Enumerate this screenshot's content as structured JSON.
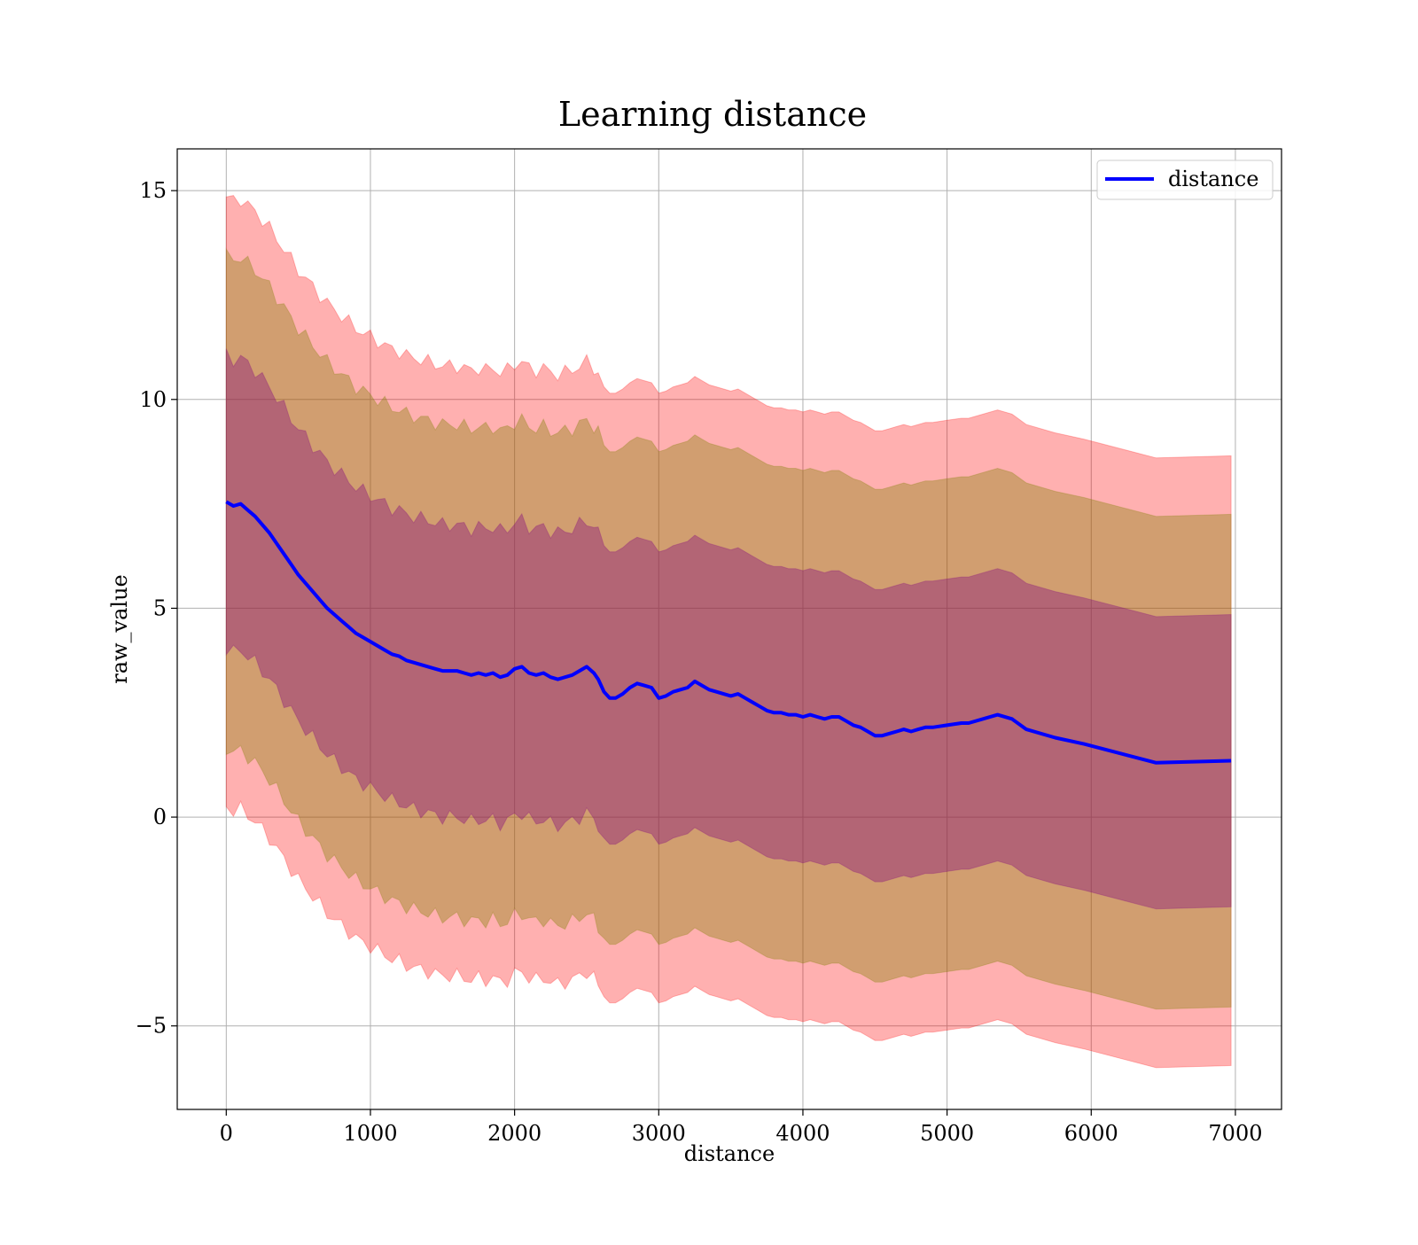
{
  "chart_data": {
    "type": "line",
    "title": "Learning distance",
    "xlabel": "distance",
    "ylabel": "raw_value",
    "xlim": [
      -340,
      7320
    ],
    "ylim": [
      -7.0,
      16.0
    ],
    "xticks": [
      0,
      1000,
      2000,
      3000,
      4000,
      5000,
      6000,
      7000
    ],
    "xtick_labels": [
      "0",
      "1000",
      "2000",
      "3000",
      "4000",
      "5000",
      "6000",
      "7000"
    ],
    "yticks": [
      -5,
      0,
      5,
      10,
      15
    ],
    "ytick_labels": [
      "−5",
      "0",
      "5",
      "10",
      "15"
    ],
    "grid": true,
    "legend_position": "top-right",
    "series": [
      {
        "name": "distance",
        "color": "#0000ff",
        "x": [
          0,
          50,
          100,
          150,
          200,
          250,
          300,
          350,
          400,
          450,
          500,
          550,
          600,
          650,
          700,
          750,
          800,
          850,
          900,
          950,
          1000,
          1050,
          1100,
          1150,
          1200,
          1250,
          1300,
          1350,
          1400,
          1450,
          1500,
          1550,
          1600,
          1650,
          1700,
          1750,
          1800,
          1850,
          1900,
          1950,
          2000,
          2050,
          2100,
          2150,
          2200,
          2250,
          2300,
          2350,
          2400,
          2450,
          2500,
          2550,
          2580,
          2620,
          2660,
          2700,
          2750,
          2800,
          2850,
          2900,
          2950,
          3000,
          3050,
          3100,
          3150,
          3200,
          3250,
          3300,
          3350,
          3400,
          3450,
          3500,
          3550,
          3600,
          3650,
          3700,
          3750,
          3800,
          3850,
          3900,
          3950,
          4000,
          4050,
          4100,
          4150,
          4200,
          4250,
          4300,
          4350,
          4400,
          4450,
          4500,
          4550,
          4600,
          4650,
          4700,
          4750,
          4800,
          4850,
          4900,
          5000,
          5100,
          5150,
          5350,
          5450,
          5550,
          5750,
          5950,
          6450,
          6970
        ],
        "values": [
          7.55,
          7.45,
          7.5,
          7.35,
          7.2,
          7.0,
          6.8,
          6.55,
          6.3,
          6.05,
          5.8,
          5.6,
          5.4,
          5.2,
          5.0,
          4.85,
          4.7,
          4.55,
          4.4,
          4.3,
          4.2,
          4.1,
          4.0,
          3.9,
          3.85,
          3.75,
          3.7,
          3.65,
          3.6,
          3.55,
          3.5,
          3.5,
          3.5,
          3.45,
          3.4,
          3.45,
          3.4,
          3.45,
          3.35,
          3.4,
          3.55,
          3.6,
          3.45,
          3.4,
          3.45,
          3.35,
          3.3,
          3.35,
          3.4,
          3.5,
          3.6,
          3.45,
          3.3,
          3.0,
          2.85,
          2.85,
          2.95,
          3.1,
          3.2,
          3.15,
          3.1,
          2.85,
          2.9,
          3.0,
          3.05,
          3.1,
          3.25,
          3.15,
          3.05,
          3.0,
          2.95,
          2.9,
          2.95,
          2.85,
          2.75,
          2.65,
          2.55,
          2.5,
          2.5,
          2.45,
          2.45,
          2.4,
          2.45,
          2.4,
          2.35,
          2.4,
          2.4,
          2.3,
          2.2,
          2.15,
          2.05,
          1.95,
          1.95,
          2.0,
          2.05,
          2.1,
          2.05,
          2.1,
          2.15,
          2.15,
          2.2,
          2.25,
          2.25,
          2.45,
          2.35,
          2.1,
          1.9,
          1.75,
          1.3,
          1.35
        ]
      }
    ],
    "bands": [
      {
        "label": "outer",
        "color": "#ff0000",
        "opacity": 0.31,
        "half_width_start": 7.3,
        "half_width_end": 7.3
      },
      {
        "label": "middle",
        "color": "#808000",
        "opacity": 0.36,
        "half_width_start": 5.9,
        "half_width_end": 5.9
      },
      {
        "label": "inner",
        "color": "#800080",
        "opacity": 0.36,
        "half_width_start": 3.5,
        "half_width_end": 3.5
      }
    ]
  }
}
